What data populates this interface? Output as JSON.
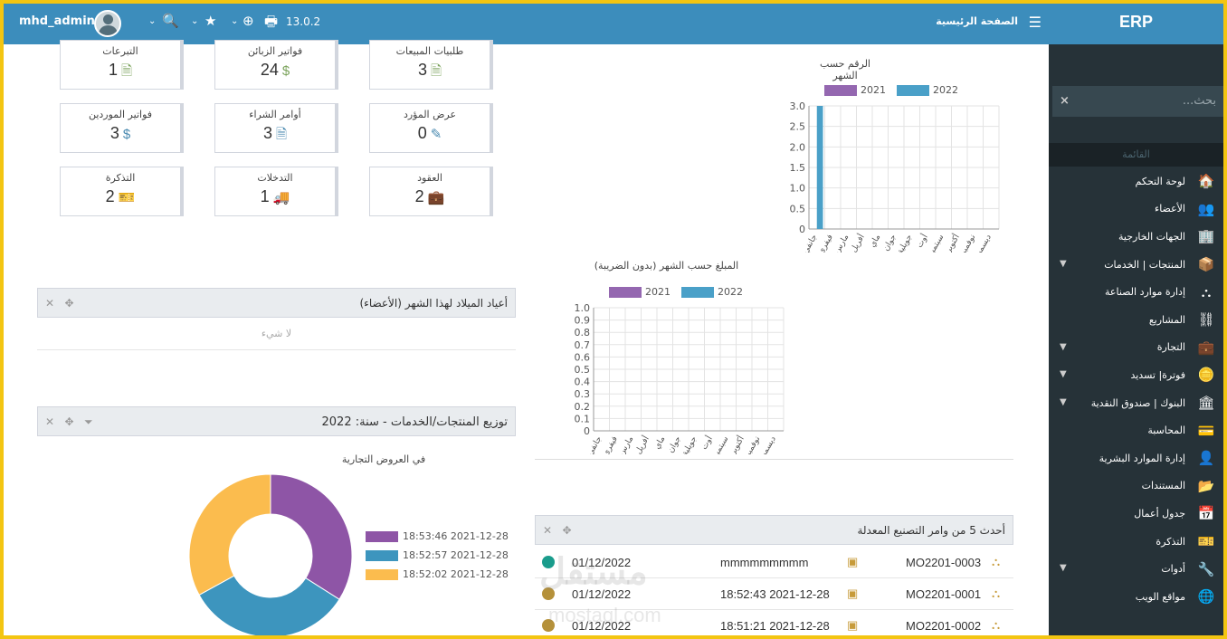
{
  "sidebar": {
    "brand": "ERP",
    "search_placeholder": "بحث...",
    "section_label": "القائمة",
    "items": [
      {
        "label": "لوحة التحكم",
        "icon": "home-icon",
        "glyph": "🏠",
        "chevron": false
      },
      {
        "label": "الأعضاء",
        "icon": "users-icon",
        "glyph": "👥",
        "chevron": false
      },
      {
        "label": "الجهات الخارجية",
        "icon": "building-icon",
        "glyph": "🏢",
        "chevron": false
      },
      {
        "label": "المنتجات | الخدمات",
        "icon": "cube-icon",
        "glyph": "📦",
        "chevron": true
      },
      {
        "label": "إدارة موارد الصناعة",
        "icon": "cubes-icon",
        "glyph": "⛬",
        "chevron": false
      },
      {
        "label": "المشاريع",
        "icon": "sitemap-icon",
        "glyph": "⛓",
        "chevron": false
      },
      {
        "label": "التجارة",
        "icon": "suitcase-icon",
        "glyph": "💼",
        "chevron": true
      },
      {
        "label": "فوترة| تسديد",
        "icon": "coins-icon",
        "glyph": "🪙",
        "chevron": true
      },
      {
        "label": "البنوك | صندوق النقدية",
        "icon": "bank-icon",
        "glyph": "🏛",
        "chevron": true
      },
      {
        "label": "المحاسبة",
        "icon": "money-check-icon",
        "glyph": "💳",
        "chevron": false
      },
      {
        "label": "إدارة الموارد البشرية",
        "icon": "user-tie-icon",
        "glyph": "👤",
        "chevron": false
      },
      {
        "label": "المستندات",
        "icon": "folder-open-icon",
        "glyph": "📂",
        "chevron": false
      },
      {
        "label": "جدول أعمال",
        "icon": "calendar-icon",
        "glyph": "📅",
        "chevron": false
      },
      {
        "label": "التذكرة",
        "icon": "ticket-icon",
        "glyph": "🎫",
        "chevron": false
      },
      {
        "label": "أدوات",
        "icon": "wrench-icon",
        "glyph": "🔧",
        "chevron": true
      },
      {
        "label": "مواقع الويب",
        "icon": "globe-icon",
        "glyph": "🌐",
        "chevron": false
      }
    ]
  },
  "topbar": {
    "home_label": "الصفحة الرئيسية",
    "version": "13.0.2",
    "username": "mhd_admin"
  },
  "stats": [
    {
      "label": "طلبيات المبيعات",
      "value": "3",
      "icon": "file-invoice-icon",
      "glyph": "🗎",
      "color": "#7ba35c"
    },
    {
      "label": "فواتير الزبائن",
      "value": "24",
      "icon": "file-dollar-icon",
      "glyph": "$",
      "color": "#7ba35c"
    },
    {
      "label": "التبرعات",
      "value": "1",
      "icon": "file-alt-icon",
      "glyph": "🗎",
      "color": "#7ba35c"
    },
    {
      "label": "عرض المؤرد",
      "value": "0",
      "icon": "file-signature-icon",
      "glyph": "✎",
      "color": "#4a8ab0"
    },
    {
      "label": "أوامر الشراء",
      "value": "3",
      "icon": "file-lines-icon",
      "glyph": "🗎",
      "color": "#4a8ab0"
    },
    {
      "label": "فواتير الموردين",
      "value": "3",
      "icon": "file-dollar-icon",
      "glyph": "$",
      "color": "#4a8ab0"
    },
    {
      "label": "العقود",
      "value": "2",
      "icon": "suitcase-icon",
      "glyph": "💼",
      "color": "#41b3a3"
    },
    {
      "label": "التدخلات",
      "value": "1",
      "icon": "ambulance-icon",
      "glyph": "🚚",
      "color": "#41b3a3"
    },
    {
      "label": "التذكرة",
      "value": "2",
      "icon": "ticket-icon",
      "glyph": "🎫",
      "color": "#41b3a3"
    }
  ],
  "birthdays_panel": {
    "title": "أعياد الميلاد لهذا الشهر (الأعضاء)",
    "empty": "لا شيء"
  },
  "distribution_panel": {
    "title": "توزيع المنتجات/الخدمات - سنة: 2022",
    "subtitle": "في العروض التجارية"
  },
  "mo_panel": {
    "title": "أحدث 5 من وامر التصنيع المعدلة",
    "rows": [
      {
        "ref": "MO2201-0003",
        "product": "mmmmmmmmm",
        "date": "01/12/2022",
        "status_color": "#1a9c8c"
      },
      {
        "ref": "MO2201-0001",
        "product": "18:52:43 2021-12-28",
        "date": "01/12/2022",
        "status_color": "#b5913a"
      },
      {
        "ref": "MO2201-0002",
        "product": "18:51:21 2021-12-28",
        "date": "01/12/2022",
        "status_color": "#b5913a"
      }
    ]
  },
  "watermark": {
    "main": "مستقل",
    "sub": "mostaql.com"
  },
  "colors": {
    "series_2021": "#9467b0",
    "series_2022": "#4aa0c8",
    "accent": "#3c8dbc"
  },
  "chart_data": [
    {
      "type": "bar",
      "title": "الرقم حسب الشهر",
      "categories": [
        "جانفي",
        "فيفري",
        "مارس",
        "أفريل",
        "ماي",
        "جوان",
        "جويلية",
        "أوت",
        "سبتمبر",
        "أكتوبر",
        "نوفمبر",
        "ديسمبر"
      ],
      "category_labels": [
        "جانفي",
        "فيفري",
        "مارس",
        "أفريل",
        "ماي",
        "جوان",
        "جويلية",
        "أوت",
        "سبتمبر",
        "أكتوبر",
        "نوفمبر",
        "ديسمبر"
      ],
      "series": [
        {
          "name": "2021",
          "values": [
            0,
            0,
            0,
            0,
            0,
            0,
            0,
            0,
            0,
            0,
            0,
            0
          ]
        },
        {
          "name": "2022",
          "values": [
            3,
            0,
            0,
            0,
            0,
            0,
            0,
            0,
            0,
            0,
            0,
            0
          ]
        }
      ],
      "ylim": [
        0,
        3
      ],
      "yticks": [
        "0",
        "0.5",
        "1.0",
        "1.5",
        "2.0",
        "2.5",
        "3.0"
      ],
      "grid": true,
      "legend": "top"
    },
    {
      "type": "bar",
      "title": "المبلغ حسب الشهر (بدون الضريبة)",
      "categories": [
        "جانفي",
        "فيفري",
        "مارس",
        "أفريل",
        "ماي",
        "جوان",
        "جويلية",
        "أوت",
        "سبتمبر",
        "أكتوبر",
        "نوفمبر",
        "ديسمبر"
      ],
      "category_labels": [
        "جانفي",
        "فيفري",
        "مارس",
        "أفريل",
        "ماي",
        "جوان",
        "جويلية",
        "أوت",
        "سبتمبر",
        "أكتوبر",
        "نوفمبر",
        "ديسمبر"
      ],
      "series": [
        {
          "name": "2021",
          "values": [
            0,
            0,
            0,
            0,
            0,
            0,
            0,
            0,
            0,
            0,
            0,
            0
          ]
        },
        {
          "name": "2022",
          "values": [
            0,
            0,
            0,
            0,
            0,
            0,
            0,
            0,
            0,
            0,
            0,
            0
          ]
        }
      ],
      "ylim": [
        0,
        1
      ],
      "yticks": [
        "0",
        "0.1",
        "0.2",
        "0.3",
        "0.4",
        "0.5",
        "0.6",
        "0.7",
        "0.8",
        "0.9",
        "1.0"
      ],
      "grid": true,
      "legend": "top"
    },
    {
      "type": "pie",
      "title": "في العروض التجارية",
      "labels": [
        "18:53:46 2021-12-28",
        "18:52:57 2021-12-28",
        "18:52:02 2021-12-28"
      ],
      "values": [
        34,
        33,
        33
      ],
      "colors": [
        "#8e55a6",
        "#3d95be",
        "#fbbc4e"
      ],
      "legend": "right"
    }
  ]
}
